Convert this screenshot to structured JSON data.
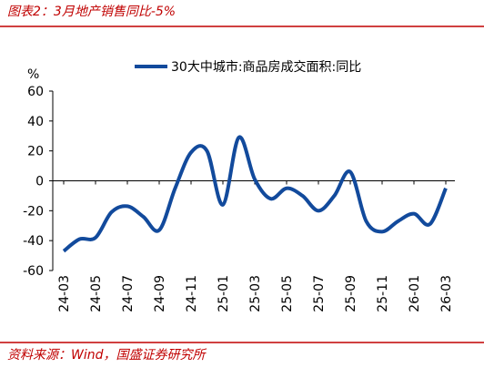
{
  "chart_data": {
    "type": "line",
    "title": "图表2：3月地产销售同比-5%",
    "source": "资料来源：Wind，国盛证券研究所",
    "y_label": "%",
    "categories": [
      "24-03",
      null,
      "24-05",
      null,
      "24-07",
      null,
      "24-09",
      null,
      "24-11",
      null,
      "25-01",
      null,
      "25-03",
      null,
      "25-05",
      null,
      "25-07",
      null,
      "25-09",
      null,
      "25-11",
      null,
      "26-01",
      null,
      "26-03"
    ],
    "series": [
      {
        "name": "30大中城市:商品房成交面积:同比",
        "color": "#124a9c",
        "values": [
          -47,
          -39,
          -38,
          -21,
          -17,
          -24,
          -33,
          -5,
          19,
          20,
          -16,
          29,
          1,
          -12,
          -5,
          -10,
          -20,
          -10,
          6,
          -27,
          -34,
          -27,
          -22,
          -29,
          -5
        ]
      }
    ],
    "ylim": [
      -60,
      60
    ],
    "yticks": [
      -60,
      -40,
      -20,
      0,
      20,
      40,
      60
    ],
    "legend": "top"
  }
}
